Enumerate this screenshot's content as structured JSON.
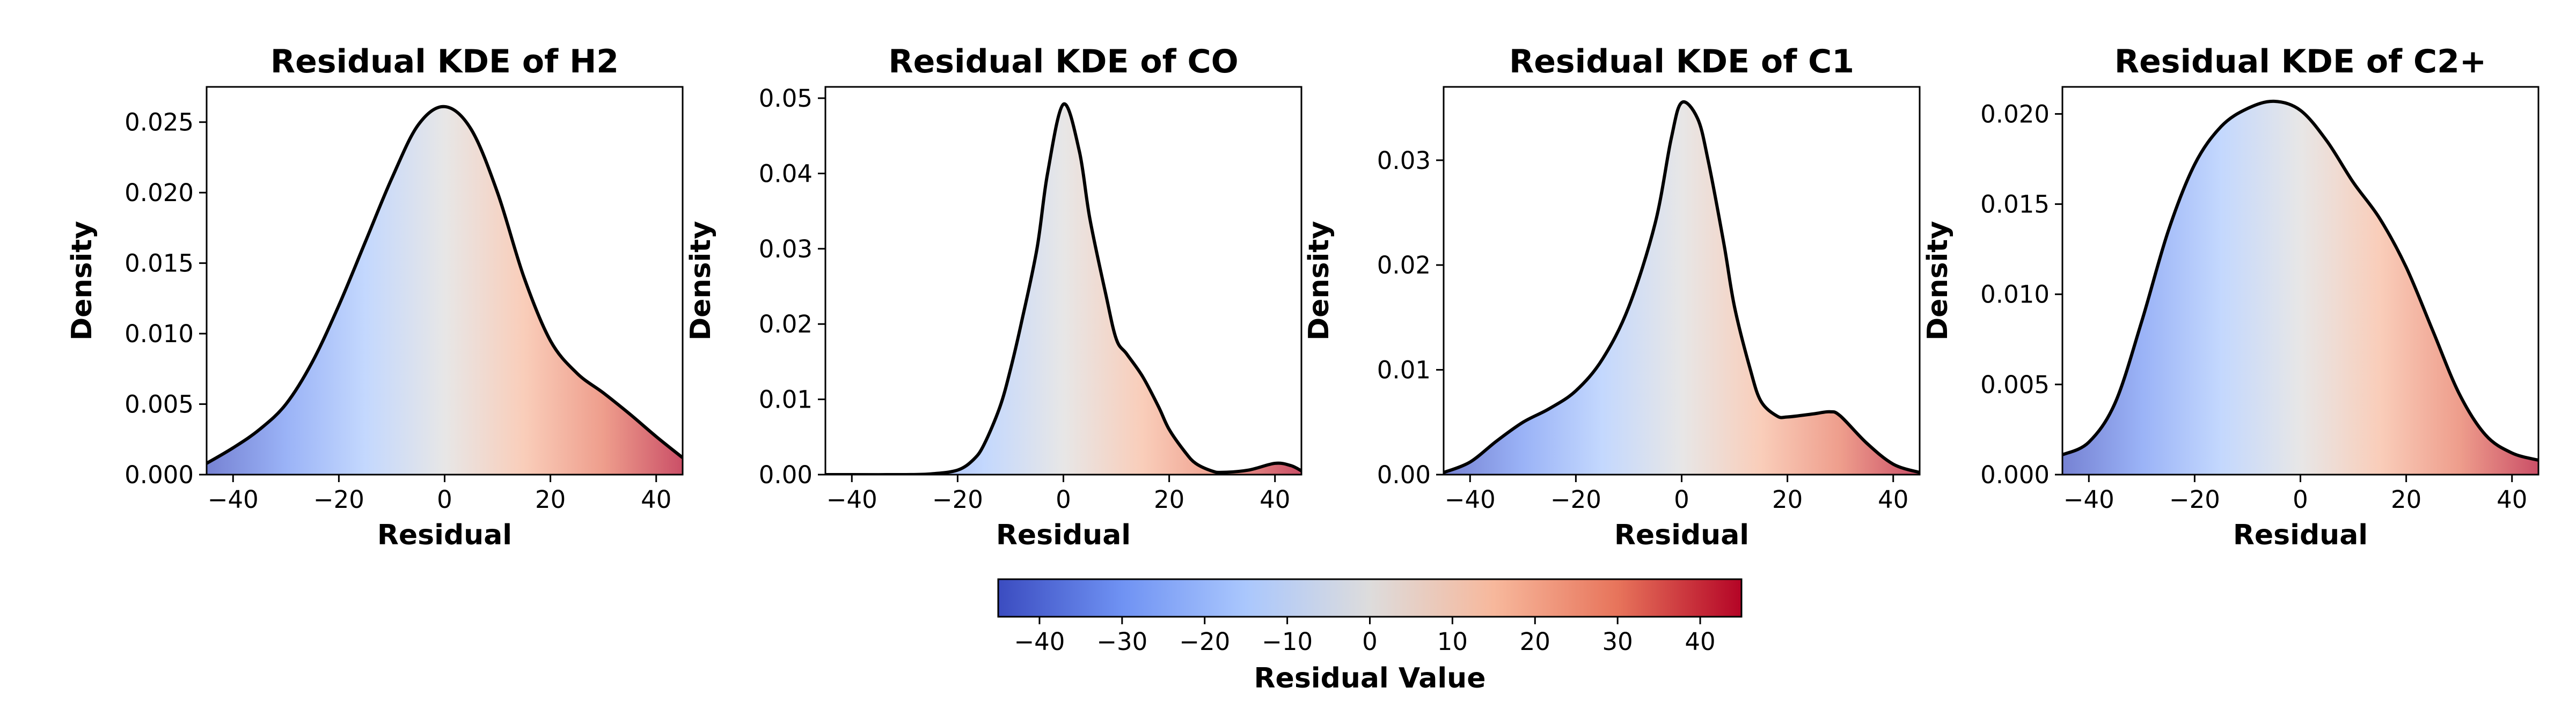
{
  "chart_data": [
    {
      "type": "area",
      "title": "Residual KDE of H2",
      "xlabel": "Residual",
      "ylabel": "Density",
      "xlim": [
        -45,
        45
      ],
      "ylim": [
        0,
        0.0275
      ],
      "xticks": [
        "-40",
        "-20",
        "0",
        "20",
        "40"
      ],
      "yticks": [
        "0.000",
        "0.005",
        "0.010",
        "0.015",
        "0.020",
        "0.025"
      ],
      "x": [
        -45,
        -40,
        -35,
        -30,
        -25,
        -20,
        -15,
        -10,
        -5,
        0,
        5,
        10,
        15,
        20,
        25,
        30,
        35,
        40,
        45
      ],
      "y": [
        0.0008,
        0.0019,
        0.0032,
        0.005,
        0.008,
        0.012,
        0.0165,
        0.021,
        0.0248,
        0.0261,
        0.0245,
        0.02,
        0.014,
        0.0095,
        0.0072,
        0.0058,
        0.0043,
        0.0027,
        0.0012
      ]
    },
    {
      "type": "area",
      "title": "Residual KDE of CO",
      "xlabel": "Residual",
      "ylabel": "Density",
      "xlim": [
        -45,
        45
      ],
      "ylim": [
        0,
        0.0515
      ],
      "xticks": [
        "-40",
        "-20",
        "0",
        "20",
        "40"
      ],
      "yticks": [
        "0.00",
        "0.01",
        "0.02",
        "0.03",
        "0.04",
        "0.05"
      ],
      "x": [
        -45,
        -40,
        -30,
        -25,
        -20,
        -17,
        -15,
        -12,
        -10,
        -8,
        -5,
        -3,
        0,
        3,
        5,
        8,
        10,
        12,
        15,
        18,
        20,
        23,
        25,
        28,
        30,
        35,
        40,
        43,
        45
      ],
      "y": [
        0,
        0,
        0,
        0.0001,
        0.0006,
        0.002,
        0.004,
        0.009,
        0.014,
        0.02,
        0.03,
        0.04,
        0.0492,
        0.043,
        0.034,
        0.024,
        0.018,
        0.016,
        0.013,
        0.009,
        0.006,
        0.003,
        0.0015,
        0.0005,
        0.0003,
        0.0006,
        0.0015,
        0.0012,
        0.0005
      ]
    },
    {
      "type": "area",
      "title": "Residual KDE of C1",
      "xlabel": "Residual",
      "ylabel": "Density",
      "xlim": [
        -45,
        45
      ],
      "ylim": [
        0,
        0.037
      ],
      "xticks": [
        "-40",
        "-20",
        "0",
        "20",
        "40"
      ],
      "yticks": [
        "0.00",
        "0.01",
        "0.02",
        "0.03"
      ],
      "x": [
        -45,
        -40,
        -35,
        -30,
        -25,
        -20,
        -15,
        -10,
        -5,
        -2,
        0,
        3,
        5,
        8,
        10,
        13,
        15,
        18,
        20,
        25,
        28,
        30,
        35,
        40,
        45
      ],
      "y": [
        0.0002,
        0.0012,
        0.0032,
        0.005,
        0.0063,
        0.008,
        0.011,
        0.016,
        0.024,
        0.032,
        0.0355,
        0.034,
        0.03,
        0.022,
        0.016,
        0.01,
        0.007,
        0.0056,
        0.0055,
        0.0058,
        0.006,
        0.0056,
        0.003,
        0.001,
        0.0002
      ]
    },
    {
      "type": "area",
      "title": "Residual KDE of C2+",
      "xlabel": "Residual",
      "ylabel": "Density",
      "xlim": [
        -45,
        45
      ],
      "ylim": [
        0,
        0.0215
      ],
      "xticks": [
        "-40",
        "-20",
        "0",
        "20",
        "40"
      ],
      "yticks": [
        "0.000",
        "0.005",
        "0.010",
        "0.015",
        "0.020"
      ],
      "x": [
        -45,
        -40,
        -35,
        -30,
        -25,
        -20,
        -15,
        -10,
        -5,
        0,
        5,
        10,
        15,
        20,
        25,
        30,
        35,
        40,
        45
      ],
      "y": [
        0.0011,
        0.0018,
        0.004,
        0.0085,
        0.0135,
        0.0172,
        0.0193,
        0.0203,
        0.0207,
        0.0202,
        0.0185,
        0.0162,
        0.0142,
        0.0115,
        0.008,
        0.0045,
        0.0022,
        0.0012,
        0.0008
      ]
    }
  ],
  "colorbar": {
    "label": "Residual Value",
    "vmin": -45,
    "vmax": 45,
    "ticks": [
      "-40",
      "-30",
      "-20",
      "-10",
      "0",
      "10",
      "20",
      "30",
      "40"
    ],
    "colors": [
      "#3b4cc0",
      "#6f92f3",
      "#aac7fd",
      "#dddcdc",
      "#f7b89c",
      "#e7745b",
      "#b40426"
    ]
  }
}
